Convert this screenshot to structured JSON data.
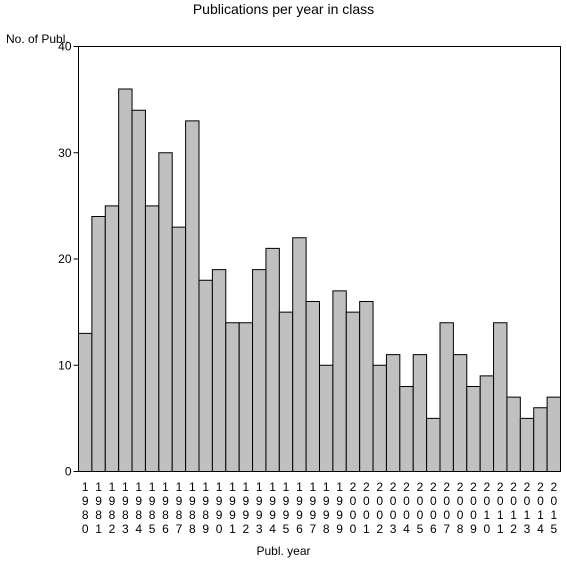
{
  "chart_data": {
    "type": "bar",
    "title": "Publications per year in class",
    "xlabel": "Publ. year",
    "ylabel": "No. of Publ.",
    "ylim": [
      0,
      40
    ],
    "yticks": [
      0,
      10,
      20,
      30,
      40
    ],
    "grid": false,
    "bar_color": "#c0c0c0",
    "edge_color": "#000000",
    "categories": [
      "1980",
      "1981",
      "1982",
      "1983",
      "1984",
      "1985",
      "1986",
      "1987",
      "1988",
      "1989",
      "1990",
      "1991",
      "1992",
      "1993",
      "1994",
      "1995",
      "1996",
      "1997",
      "1998",
      "1999",
      "2000",
      "2001",
      "2002",
      "2003",
      "2004",
      "2005",
      "2006",
      "2007",
      "2008",
      "2009",
      "2010",
      "2011",
      "2012",
      "2013",
      "2014",
      "2015"
    ],
    "values": [
      13,
      24,
      25,
      36,
      34,
      25,
      30,
      23,
      33,
      18,
      19,
      14,
      14,
      19,
      21,
      15,
      22,
      16,
      10,
      17,
      15,
      16,
      10,
      11,
      8,
      11,
      5,
      14,
      11,
      8,
      9,
      14,
      7,
      5,
      6,
      7
    ]
  }
}
